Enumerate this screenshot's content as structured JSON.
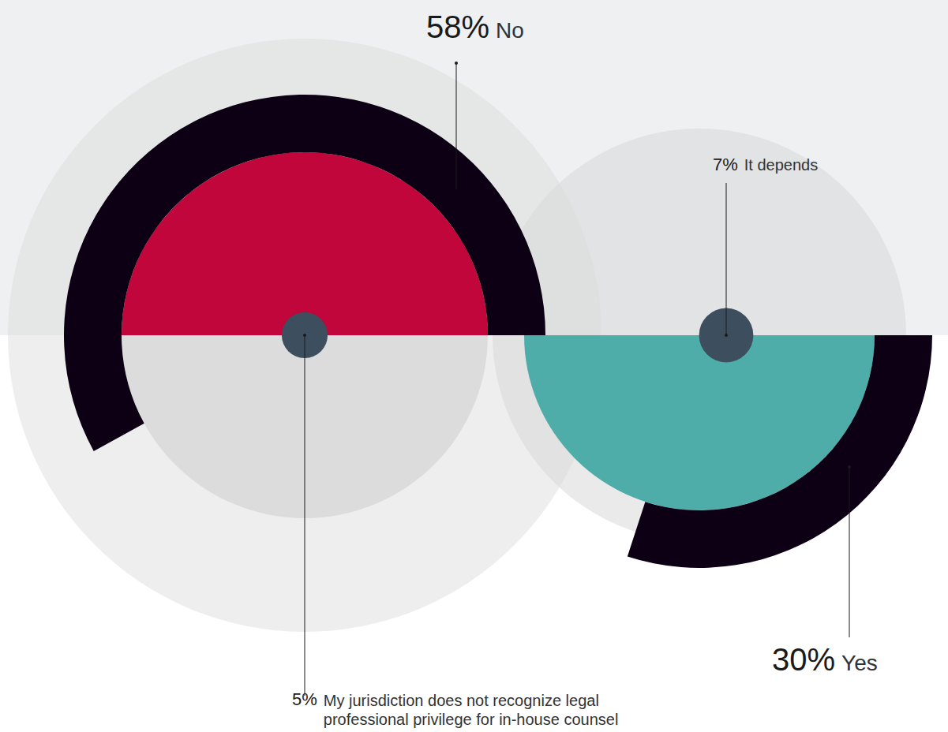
{
  "chart_data": {
    "type": "pie",
    "categories": [
      "No",
      "Yes",
      "It depends",
      "My jurisdiction does not recognize legal professional privilege for in-house counsel"
    ],
    "values": [
      58,
      30,
      7,
      5
    ],
    "value_labels": [
      "58%",
      "30%",
      "7%",
      "5%"
    ],
    "colors": [
      "#0d0014",
      "#0d0014",
      "#3d4f5f",
      "#3d4f5f"
    ],
    "data_labels": true
  }
}
